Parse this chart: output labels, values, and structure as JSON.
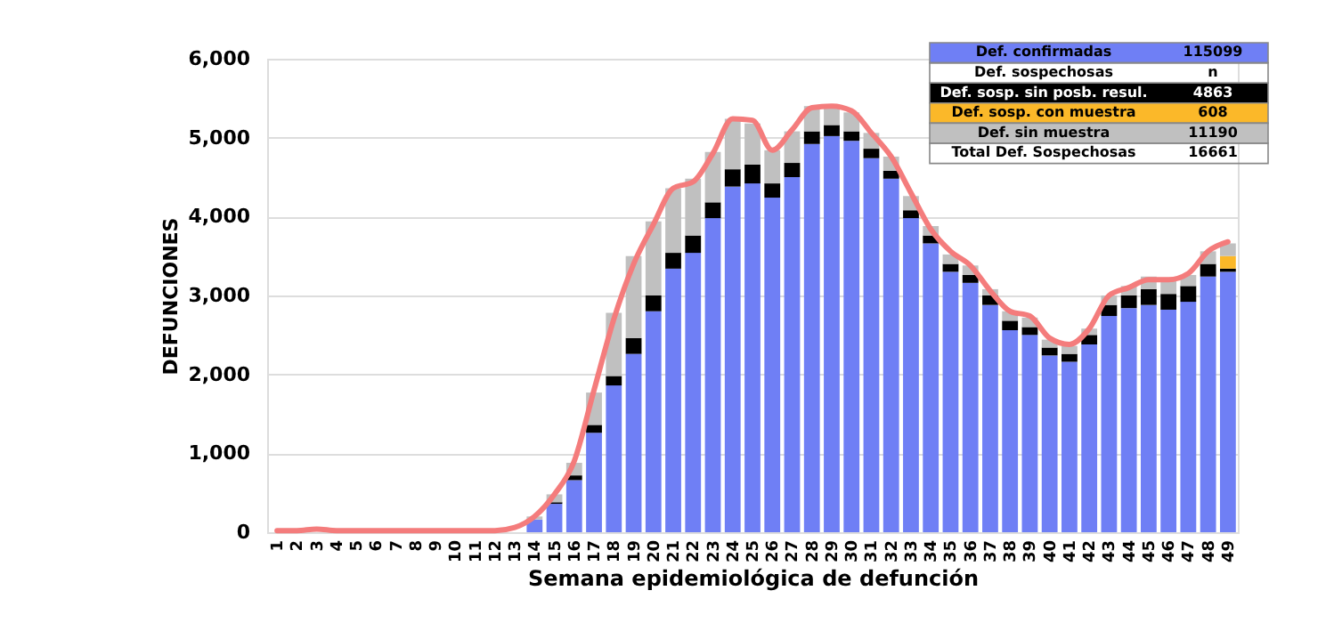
{
  "chart_data": {
    "type": "bar",
    "stacked": true,
    "ylabel": "DEFUNCIONES",
    "xlabel": "Semana epidemiológica de defunción",
    "categories": [
      "1",
      "2",
      "3",
      "4",
      "5",
      "6",
      "7",
      "8",
      "9",
      "10",
      "11",
      "12",
      "13",
      "14",
      "15",
      "16",
      "17",
      "18",
      "19",
      "20",
      "21",
      "22",
      "23",
      "24",
      "25",
      "26",
      "27",
      "28",
      "29",
      "30",
      "31",
      "32",
      "33",
      "34",
      "35",
      "36",
      "37",
      "38",
      "39",
      "40",
      "41",
      "42",
      "43",
      "44",
      "45",
      "46",
      "47",
      "48",
      "49"
    ],
    "ylim": [
      0,
      6000
    ],
    "yticks": [
      {
        "value": 0,
        "label": "0"
      },
      {
        "value": 1000,
        "label": "1,000"
      },
      {
        "value": 2000,
        "label": "2,000"
      },
      {
        "value": 3000,
        "label": "3,000"
      },
      {
        "value": 4000,
        "label": "4,000"
      },
      {
        "value": 5000,
        "label": "5,000"
      },
      {
        "value": 6000,
        "label": "6,000"
      }
    ],
    "grid": "y",
    "legend": "top right",
    "series": [
      {
        "name": "Def. confirmadas",
        "color": "#6f7ff5",
        "values": [
          null,
          null,
          null,
          null,
          null,
          null,
          null,
          null,
          null,
          null,
          null,
          null,
          null,
          160,
          360,
          660,
          1260,
          1860,
          2260,
          2800,
          3340,
          3540,
          3980,
          4380,
          4420,
          4240,
          4500,
          4920,
          5020,
          4960,
          4740,
          4480,
          3980,
          3660,
          3300,
          3160,
          2880,
          2560,
          2500,
          2240,
          2160,
          2380,
          2740,
          2840,
          2880,
          2820,
          2920,
          3240,
          3300
        ]
      },
      {
        "name": "Def. sosp. sin posb. resul.",
        "color": "#000000",
        "values": [
          null,
          null,
          null,
          null,
          null,
          null,
          null,
          null,
          null,
          null,
          null,
          null,
          null,
          null,
          20,
          60,
          100,
          120,
          200,
          200,
          200,
          220,
          200,
          220,
          240,
          180,
          180,
          160,
          140,
          120,
          120,
          100,
          100,
          100,
          100,
          100,
          120,
          120,
          100,
          100,
          100,
          120,
          140,
          160,
          200,
          200,
          200,
          160,
          40
        ]
      },
      {
        "name": "Def. sosp. con  muestra",
        "color": "#fbb829",
        "values": [
          null,
          null,
          null,
          null,
          null,
          null,
          null,
          null,
          null,
          null,
          null,
          null,
          null,
          null,
          null,
          null,
          null,
          null,
          null,
          null,
          null,
          null,
          null,
          null,
          null,
          null,
          null,
          null,
          null,
          null,
          null,
          null,
          null,
          null,
          null,
          null,
          null,
          null,
          null,
          null,
          null,
          null,
          null,
          null,
          null,
          null,
          null,
          null,
          160
        ]
      },
      {
        "name": "Def. sin muestra",
        "color": "#c0c0c0",
        "values": [
          null,
          null,
          null,
          null,
          null,
          null,
          null,
          null,
          null,
          null,
          null,
          null,
          null,
          40,
          100,
          160,
          410,
          800,
          1040,
          940,
          820,
          720,
          640,
          640,
          520,
          420,
          400,
          320,
          260,
          240,
          200,
          180,
          180,
          120,
          120,
          120,
          80,
          120,
          120,
          100,
          100,
          80,
          120,
          120,
          160,
          160,
          140,
          160,
          160
        ]
      },
      {
        "type": "line",
        "color": "#f47c7c",
        "values": [
          20,
          20,
          40,
          20,
          20,
          20,
          20,
          20,
          20,
          20,
          20,
          20,
          60,
          200,
          480,
          900,
          1800,
          2700,
          3400,
          3900,
          4360,
          4440,
          4800,
          5240,
          5220,
          4840,
          5100,
          5380,
          5400,
          5340,
          5060,
          4760,
          4300,
          3840,
          3560,
          3380,
          3060,
          2800,
          2740,
          2460,
          2380,
          2580,
          3000,
          3100,
          3200,
          3200,
          3280,
          3560,
          3680
        ]
      }
    ],
    "annotations": [
      "115099",
      "Def. sospechosas",
      "n",
      "4863",
      "608",
      "11190",
      "Total Def. Sospechosas",
      "16661"
    ]
  }
}
